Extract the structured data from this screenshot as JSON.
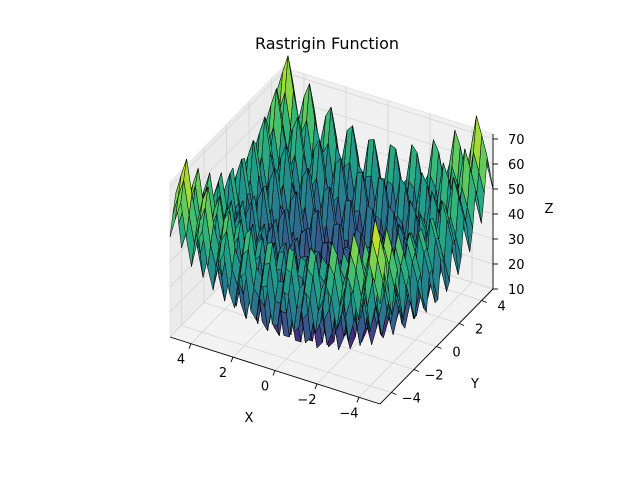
{
  "chart_data": {
    "type": "surface3d",
    "title": "Rastrigin Function",
    "xlabel": "X",
    "ylabel": "Y",
    "zlabel": "Z",
    "function": "z = 20 + x^2 - 10cos(2*pi*x) + y^2 - 10cos(2*pi*y)",
    "x_domain": [
      -5,
      5
    ],
    "y_domain": [
      -5,
      5
    ],
    "grid_size": 40,
    "x_ticks": [
      "−4",
      "−2",
      "0",
      "2",
      "4"
    ],
    "y_ticks": [
      "−4",
      "−2",
      "0",
      "2",
      "4"
    ],
    "z_ticks": [
      "10",
      "20",
      "30",
      "40",
      "50",
      "60",
      "70"
    ],
    "z_range": [
      10,
      72
    ],
    "colormap": "viridis",
    "edge_color": "#000000",
    "pane_color": "#f2f2f2",
    "grid": true
  }
}
